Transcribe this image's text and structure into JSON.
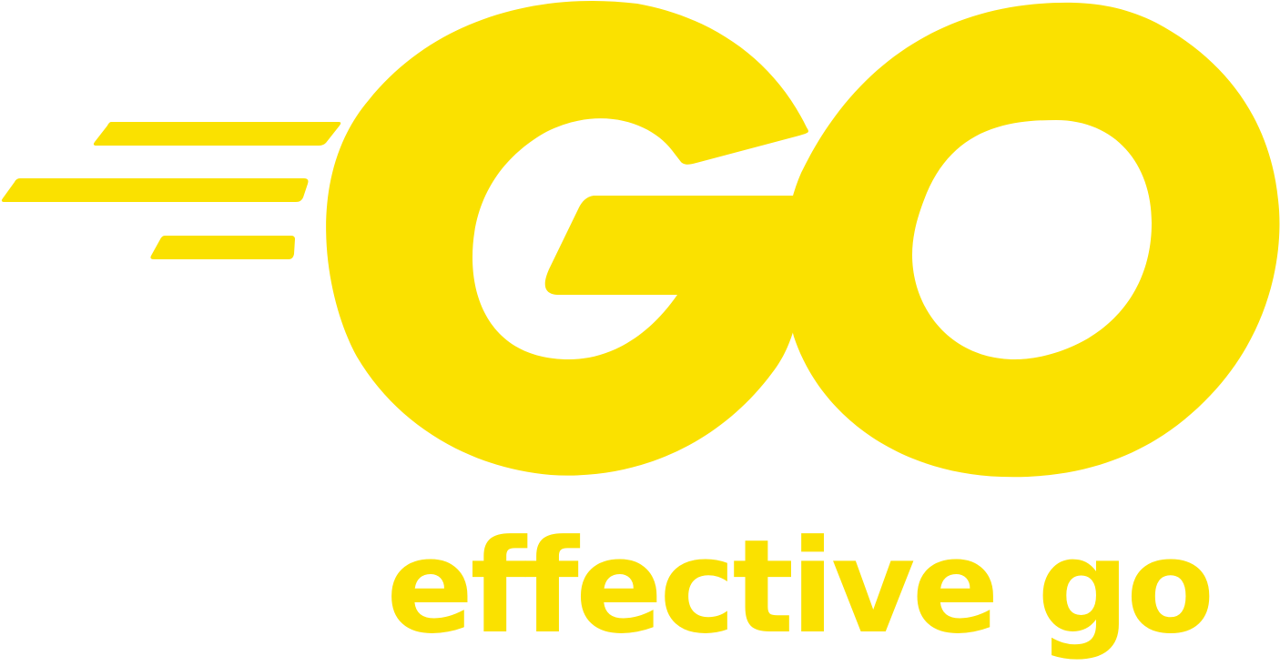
{
  "logo": {
    "wordmark": "GO",
    "icon": "go-gopher-speed-lines-logo",
    "tagline": "effective go"
  },
  "colors": {
    "brand": "#fae100",
    "background": "#ffffff"
  }
}
